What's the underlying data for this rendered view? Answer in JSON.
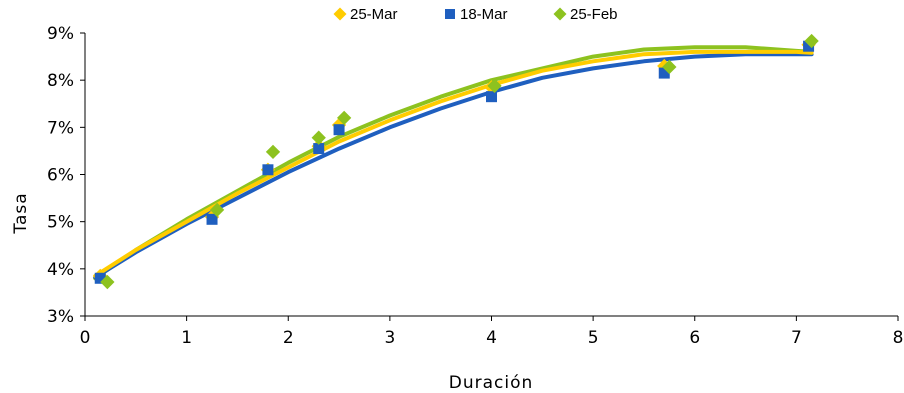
{
  "chart_data": {
    "type": "scatter",
    "xlabel": "Duración",
    "ylabel": "Tasa",
    "xlim": [
      0,
      8
    ],
    "ylim": [
      3,
      9
    ],
    "x_ticks": [
      "0",
      "1",
      "2",
      "3",
      "4",
      "5",
      "6",
      "7",
      "8"
    ],
    "y_ticks": [
      "3%",
      "4%",
      "5%",
      "6%",
      "7%",
      "8%",
      "9%"
    ],
    "grid": false,
    "legend_position": "top",
    "series": [
      {
        "name": "25-Mar",
        "color": "#ffcc00",
        "marker": "diamond",
        "points": [
          [
            0.15,
            3.85
          ],
          [
            1.25,
            5.1
          ],
          [
            1.8,
            6.1
          ],
          [
            2.3,
            6.6
          ],
          [
            2.5,
            7.05
          ],
          [
            4.0,
            7.85
          ],
          [
            5.7,
            8.3
          ],
          [
            7.12,
            8.75
          ]
        ],
        "curve": [
          [
            0.1,
            3.85
          ],
          [
            0.5,
            4.4
          ],
          [
            1.0,
            5.0
          ],
          [
            1.5,
            5.6
          ],
          [
            2.0,
            6.15
          ],
          [
            2.5,
            6.7
          ],
          [
            3.0,
            7.15
          ],
          [
            3.5,
            7.55
          ],
          [
            4.0,
            7.9
          ],
          [
            4.5,
            8.2
          ],
          [
            5.0,
            8.4
          ],
          [
            5.5,
            8.55
          ],
          [
            6.0,
            8.6
          ],
          [
            6.5,
            8.6
          ],
          [
            7.0,
            8.6
          ],
          [
            7.15,
            8.58
          ]
        ]
      },
      {
        "name": "18-Mar",
        "color": "#1f5fbf",
        "marker": "square",
        "points": [
          [
            0.15,
            3.8
          ],
          [
            1.25,
            5.05
          ],
          [
            1.8,
            6.1
          ],
          [
            2.3,
            6.55
          ],
          [
            2.5,
            6.95
          ],
          [
            4.0,
            7.65
          ],
          [
            5.7,
            8.15
          ],
          [
            7.12,
            8.72
          ]
        ],
        "curve": [
          [
            0.1,
            3.82
          ],
          [
            0.5,
            4.35
          ],
          [
            1.0,
            4.95
          ],
          [
            1.5,
            5.5
          ],
          [
            2.0,
            6.05
          ],
          [
            2.5,
            6.55
          ],
          [
            3.0,
            7.0
          ],
          [
            3.5,
            7.4
          ],
          [
            4.0,
            7.75
          ],
          [
            4.5,
            8.05
          ],
          [
            5.0,
            8.25
          ],
          [
            5.5,
            8.4
          ],
          [
            6.0,
            8.5
          ],
          [
            6.5,
            8.55
          ],
          [
            7.0,
            8.55
          ],
          [
            7.15,
            8.55
          ]
        ]
      },
      {
        "name": "25-Feb",
        "color": "#8dc21f",
        "marker": "diamond",
        "points": [
          [
            0.22,
            3.72
          ],
          [
            1.3,
            5.25
          ],
          [
            1.85,
            6.48
          ],
          [
            2.3,
            6.78
          ],
          [
            2.55,
            7.2
          ],
          [
            4.03,
            7.88
          ],
          [
            5.75,
            8.28
          ],
          [
            7.15,
            8.83
          ]
        ],
        "curve": [
          [
            0.1,
            3.8
          ],
          [
            0.5,
            4.4
          ],
          [
            1.0,
            5.05
          ],
          [
            1.5,
            5.65
          ],
          [
            2.0,
            6.25
          ],
          [
            2.5,
            6.8
          ],
          [
            3.0,
            7.25
          ],
          [
            3.5,
            7.65
          ],
          [
            4.0,
            8.0
          ],
          [
            4.5,
            8.25
          ],
          [
            5.0,
            8.5
          ],
          [
            5.5,
            8.65
          ],
          [
            6.0,
            8.7
          ],
          [
            6.5,
            8.7
          ],
          [
            7.0,
            8.62
          ],
          [
            7.15,
            8.6
          ]
        ]
      }
    ]
  }
}
